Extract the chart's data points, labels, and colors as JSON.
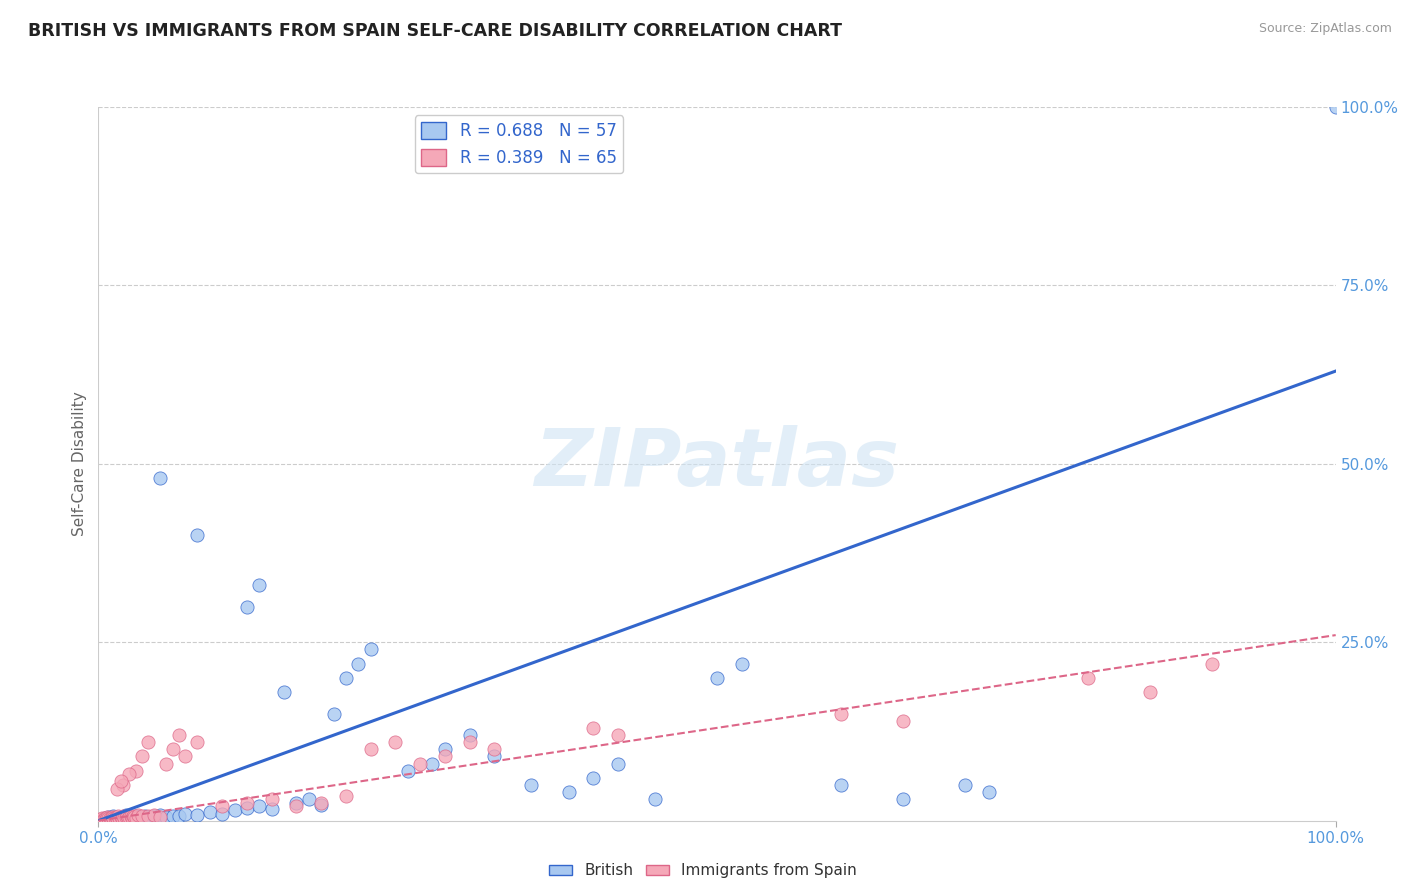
{
  "title": "BRITISH VS IMMIGRANTS FROM SPAIN SELF-CARE DISABILITY CORRELATION CHART",
  "source": "Source: ZipAtlas.com",
  "ylabel": "Self-Care Disability",
  "legend_british_R": "R = 0.688",
  "legend_british_N": "N = 57",
  "legend_spain_R": "R = 0.389",
  "legend_spain_N": "N = 65",
  "british_color": "#a8c8f0",
  "spain_color": "#f5a8b8",
  "british_line_color": "#3366cc",
  "spain_line_color": "#dd6688",
  "grid_color": "#cccccc",
  "tick_color": "#5599dd",
  "watermark": "ZIPatlas",
  "background_color": "#ffffff",
  "british_points": [
    [
      0.5,
      0.3
    ],
    [
      0.8,
      0.5
    ],
    [
      1.0,
      0.4
    ],
    [
      1.2,
      0.6
    ],
    [
      1.5,
      0.3
    ],
    [
      1.8,
      0.5
    ],
    [
      2.0,
      0.4
    ],
    [
      2.2,
      0.8
    ],
    [
      2.5,
      0.5
    ],
    [
      2.8,
      0.4
    ],
    [
      3.0,
      0.6
    ],
    [
      3.2,
      0.5
    ],
    [
      3.5,
      0.4
    ],
    [
      3.8,
      0.7
    ],
    [
      4.0,
      0.5
    ],
    [
      4.5,
      0.6
    ],
    [
      5.0,
      0.8
    ],
    [
      5.5,
      0.5
    ],
    [
      6.0,
      0.7
    ],
    [
      6.5,
      0.6
    ],
    [
      7.0,
      1.0
    ],
    [
      8.0,
      0.8
    ],
    [
      9.0,
      1.2
    ],
    [
      10.0,
      0.9
    ],
    [
      11.0,
      1.5
    ],
    [
      12.0,
      1.8
    ],
    [
      13.0,
      2.0
    ],
    [
      14.0,
      1.6
    ],
    [
      15.0,
      18.0
    ],
    [
      16.0,
      2.5
    ],
    [
      17.0,
      3.0
    ],
    [
      18.0,
      2.2
    ],
    [
      19.0,
      15.0
    ],
    [
      20.0,
      20.0
    ],
    [
      21.0,
      22.0
    ],
    [
      22.0,
      24.0
    ],
    [
      12.0,
      30.0
    ],
    [
      13.0,
      33.0
    ],
    [
      8.0,
      40.0
    ],
    [
      5.0,
      48.0
    ],
    [
      25.0,
      7.0
    ],
    [
      27.0,
      8.0
    ],
    [
      28.0,
      10.0
    ],
    [
      30.0,
      12.0
    ],
    [
      32.0,
      9.0
    ],
    [
      35.0,
      5.0
    ],
    [
      38.0,
      4.0
    ],
    [
      40.0,
      6.0
    ],
    [
      42.0,
      8.0
    ],
    [
      45.0,
      3.0
    ],
    [
      50.0,
      20.0
    ],
    [
      52.0,
      22.0
    ],
    [
      60.0,
      5.0
    ],
    [
      65.0,
      3.0
    ],
    [
      70.0,
      5.0
    ],
    [
      72.0,
      4.0
    ],
    [
      100.0,
      100.0
    ]
  ],
  "spain_points": [
    [
      0.2,
      0.2
    ],
    [
      0.3,
      0.3
    ],
    [
      0.4,
      0.1
    ],
    [
      0.5,
      0.4
    ],
    [
      0.6,
      0.2
    ],
    [
      0.7,
      0.5
    ],
    [
      0.8,
      0.3
    ],
    [
      0.9,
      0.4
    ],
    [
      1.0,
      0.2
    ],
    [
      1.1,
      0.5
    ],
    [
      1.2,
      0.3
    ],
    [
      1.3,
      0.4
    ],
    [
      1.4,
      0.5
    ],
    [
      1.5,
      0.3
    ],
    [
      1.6,
      0.6
    ],
    [
      1.7,
      0.4
    ],
    [
      1.8,
      0.5
    ],
    [
      1.9,
      0.3
    ],
    [
      2.0,
      0.6
    ],
    [
      2.1,
      0.4
    ],
    [
      2.2,
      0.5
    ],
    [
      2.3,
      0.7
    ],
    [
      2.4,
      0.4
    ],
    [
      2.5,
      0.5
    ],
    [
      2.6,
      0.6
    ],
    [
      2.7,
      0.4
    ],
    [
      2.8,
      0.7
    ],
    [
      2.9,
      0.5
    ],
    [
      3.0,
      0.4
    ],
    [
      3.2,
      0.8
    ],
    [
      3.5,
      0.6
    ],
    [
      4.0,
      0.7
    ],
    [
      4.5,
      0.8
    ],
    [
      5.0,
      0.5
    ],
    [
      5.5,
      8.0
    ],
    [
      6.0,
      10.0
    ],
    [
      6.5,
      12.0
    ],
    [
      7.0,
      9.0
    ],
    [
      8.0,
      11.0
    ],
    [
      3.0,
      7.0
    ],
    [
      3.5,
      9.0
    ],
    [
      4.0,
      11.0
    ],
    [
      2.0,
      5.0
    ],
    [
      2.5,
      6.5
    ],
    [
      1.5,
      4.5
    ],
    [
      1.8,
      5.5
    ],
    [
      10.0,
      2.0
    ],
    [
      12.0,
      2.5
    ],
    [
      14.0,
      3.0
    ],
    [
      16.0,
      2.0
    ],
    [
      18.0,
      2.5
    ],
    [
      20.0,
      3.5
    ],
    [
      22.0,
      10.0
    ],
    [
      24.0,
      11.0
    ],
    [
      26.0,
      8.0
    ],
    [
      28.0,
      9.0
    ],
    [
      30.0,
      11.0
    ],
    [
      32.0,
      10.0
    ],
    [
      40.0,
      13.0
    ],
    [
      42.0,
      12.0
    ],
    [
      60.0,
      15.0
    ],
    [
      65.0,
      14.0
    ],
    [
      80.0,
      20.0
    ],
    [
      85.0,
      18.0
    ],
    [
      90.0,
      22.0
    ]
  ],
  "xlim": [
    0,
    100
  ],
  "ylim": [
    0,
    100
  ],
  "brit_line_x0": 0,
  "brit_line_y0": 0,
  "brit_line_x1": 100,
  "brit_line_y1": 63,
  "spain_line_x0": 0,
  "spain_line_y0": 0,
  "spain_line_x1": 100,
  "spain_line_y1": 26
}
